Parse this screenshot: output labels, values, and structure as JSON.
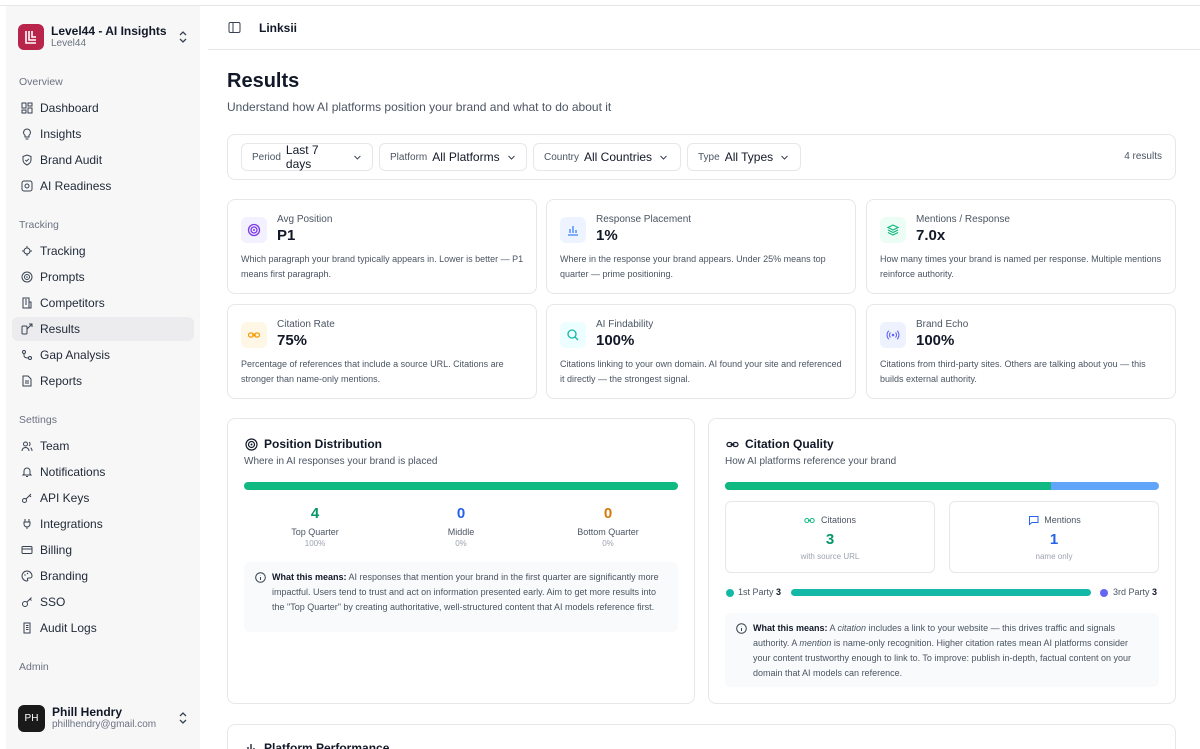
{
  "workspace": {
    "name": "Level44 - AI Insights",
    "sub": "Level44"
  },
  "sidebar": {
    "sections": [
      "Overview",
      "Tracking",
      "Settings",
      "Admin"
    ],
    "overview": [
      {
        "label": "Dashboard",
        "icon": "dashboard-icon"
      },
      {
        "label": "Insights",
        "icon": "lightbulb-icon"
      },
      {
        "label": "Brand Audit",
        "icon": "shield-icon"
      },
      {
        "label": "AI Readiness",
        "icon": "target-icon"
      }
    ],
    "tracking": [
      {
        "label": "Tracking",
        "icon": "radar-icon"
      },
      {
        "label": "Prompts",
        "icon": "target-icon"
      },
      {
        "label": "Competitors",
        "icon": "building-icon"
      },
      {
        "label": "Results",
        "icon": "link-icon",
        "active": true
      },
      {
        "label": "Gap Analysis",
        "icon": "branch-icon"
      },
      {
        "label": "Reports",
        "icon": "file-icon"
      }
    ],
    "settings": [
      {
        "label": "Team",
        "icon": "users-icon"
      },
      {
        "label": "Notifications",
        "icon": "bell-icon"
      },
      {
        "label": "API Keys",
        "icon": "key-icon"
      },
      {
        "label": "Integrations",
        "icon": "plug-icon"
      },
      {
        "label": "Billing",
        "icon": "card-icon"
      },
      {
        "label": "Branding",
        "icon": "palette-icon"
      },
      {
        "label": "SSO",
        "icon": "key-icon"
      },
      {
        "label": "Audit Logs",
        "icon": "log-icon"
      }
    ],
    "admin_partial": "Admin"
  },
  "user": {
    "initials": "PH",
    "name": "Phill Hendry",
    "email": "phillhendry@gmail.com"
  },
  "header": {
    "title": "Linksii"
  },
  "page": {
    "title": "Results",
    "subtitle": "Understand how AI platforms position your brand and what to do about it"
  },
  "filters": [
    {
      "label": "Period",
      "value": "Last 7 days"
    },
    {
      "label": "Platform",
      "value": "All Platforms"
    },
    {
      "label": "Country",
      "value": "All Countries"
    },
    {
      "label": "Type",
      "value": "All Types"
    }
  ],
  "results_count": "4 results",
  "metrics": [
    {
      "label": "Avg Position",
      "value": "P1",
      "desc": "Which paragraph your brand typically appears in. Lower is better — P1 means first paragraph.",
      "icon": "target-icon",
      "color": "#7c3aed",
      "bg": "#f3f0ff"
    },
    {
      "label": "Response Placement",
      "value": "1%",
      "desc": "Where in the response your brand appears. Under 25% means top quarter — prime positioning.",
      "icon": "bar-chart-icon",
      "color": "#3b82f6",
      "bg": "#eef4ff"
    },
    {
      "label": "Mentions / Response",
      "value": "7.0x",
      "desc": "How many times your brand is named per response. Multiple mentions reinforce authority.",
      "icon": "layers-icon",
      "color": "#10b981",
      "bg": "#ecfdf5"
    },
    {
      "label": "Citation Rate",
      "value": "75%",
      "desc": "Percentage of references that include a source URL. Citations are stronger than name-only mentions.",
      "icon": "link-icon",
      "color": "#f59e0b",
      "bg": "#fff7e6"
    },
    {
      "label": "AI Findability",
      "value": "100%",
      "desc": "Citations linking to your own domain. AI found your site and referenced it directly — the strongest signal.",
      "icon": "search-icon",
      "color": "#14b8a6",
      "bg": "#ecfeff"
    },
    {
      "label": "Brand Echo",
      "value": "100%",
      "desc": "Citations from third-party sites. Others are talking about you — this builds external authority.",
      "icon": "broadcast-icon",
      "color": "#6366f1",
      "bg": "#eef2ff"
    }
  ],
  "position_distribution": {
    "title": "Position Distribution",
    "subtitle": "Where in AI responses your brand is placed",
    "top_quarter_fraction": 1.0,
    "columns": [
      {
        "value": "4",
        "label": "Top Quarter",
        "pct": "100%",
        "color": "#059669"
      },
      {
        "value": "0",
        "label": "Middle",
        "pct": "0%",
        "color": "#2563eb"
      },
      {
        "value": "0",
        "label": "Bottom Quarter",
        "pct": "0%",
        "color": "#d97706"
      }
    ],
    "note_bold": "What this means:",
    "note_text": " AI responses that mention your brand in the first quarter are significantly more impactful. Users tend to trust and act on information presented early. Aim to get more results into the \"Top Quarter\" by creating authoritative, well-structured content that AI models reference first."
  },
  "citation_quality": {
    "title": "Citation Quality",
    "subtitle": "How AI platforms reference your brand",
    "citation_fraction": 0.75,
    "citations": {
      "label": "Citations",
      "value": "3",
      "sub": "with source URL"
    },
    "mentions": {
      "label": "Mentions",
      "value": "1",
      "sub": "name only"
    },
    "first_party": {
      "label": "1st Party",
      "value": "3"
    },
    "third_party": {
      "label": "3rd Party",
      "value": "3"
    },
    "note_bold": "What this means:",
    "note_1": " A ",
    "note_em1": "citation",
    "note_2": " includes a link to your website — this drives traffic and signals authority. A ",
    "note_em2": "mention",
    "note_3": " is name-only recognition. Higher citation rates mean AI platforms consider your content trustworthy enough to link to. To improve: publish in-depth, factual content on your domain that AI models can reference."
  },
  "platform_performance": {
    "title": "Platform Performance"
  },
  "colors": {
    "green": "#10b981",
    "blue": "#60a5fa",
    "teal": "#14b8a6",
    "purple": "#6366f1"
  }
}
